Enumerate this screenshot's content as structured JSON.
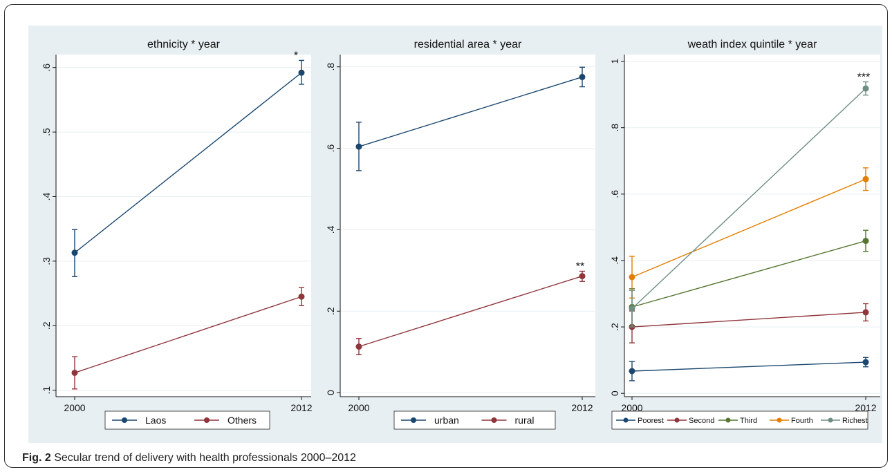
{
  "figure": {
    "caption_label": "Fig. 2",
    "caption_text": "Secular trend of delivery with health professionals 2000–2012"
  },
  "colors": {
    "navy": "#1a476f",
    "maroon": "#90353b",
    "green": "#55752f",
    "orange": "#e37e00",
    "teal": "#6e8e84",
    "plot_bg": "#ffffff",
    "outer_bg": "#e8eff2",
    "grid": "#e8eff2"
  },
  "chart_data": [
    {
      "type": "line",
      "title": "ethnicity * year",
      "xlabel": "",
      "ylabel": "",
      "x": [
        2000,
        2012
      ],
      "ylim": [
        0.09,
        0.62
      ],
      "yticks": [
        0.1,
        0.2,
        0.3,
        0.4,
        0.5,
        0.6
      ],
      "ytick_labels": [
        ".1",
        ".2",
        ".3",
        ".4",
        ".5",
        ".6"
      ],
      "grid": true,
      "legend_position": "bottom",
      "series": [
        {
          "name": "Laos",
          "color": "#1a476f",
          "values": [
            0.313,
            0.592
          ],
          "ci_low": [
            0.276,
            0.574
          ],
          "ci_high": [
            0.349,
            0.611
          ]
        },
        {
          "name": "Others",
          "color": "#90353b",
          "values": [
            0.127,
            0.245
          ],
          "ci_low": [
            0.102,
            0.231
          ],
          "ci_high": [
            0.152,
            0.259
          ]
        }
      ],
      "annotations": [
        {
          "text": "*",
          "x": 2012,
          "series": 0
        }
      ]
    },
    {
      "type": "line",
      "title": "residential area * year",
      "xlabel": "",
      "ylabel": "",
      "x": [
        2000,
        2012
      ],
      "ylim": [
        -0.01,
        0.83
      ],
      "yticks": [
        0,
        0.2,
        0.4,
        0.6,
        0.8
      ],
      "ytick_labels": [
        "0",
        ".2",
        ".4",
        ".6",
        ".8"
      ],
      "grid": true,
      "legend_position": "bottom",
      "series": [
        {
          "name": "urban",
          "color": "#1a476f",
          "values": [
            0.604,
            0.775
          ],
          "ci_low": [
            0.545,
            0.751
          ],
          "ci_high": [
            0.664,
            0.799
          ]
        },
        {
          "name": "rural",
          "color": "#90353b",
          "values": [
            0.113,
            0.286
          ],
          "ci_low": [
            0.093,
            0.273
          ],
          "ci_high": [
            0.133,
            0.298
          ]
        }
      ],
      "annotations": [
        {
          "text": "**",
          "x": 2012,
          "series": 1
        }
      ]
    },
    {
      "type": "line",
      "title": "weath index quintile * year",
      "xlabel": "",
      "ylabel": "",
      "x": [
        2000,
        2012
      ],
      "ylim": [
        -0.01,
        1.02
      ],
      "yticks": [
        0,
        0.2,
        0.4,
        0.6,
        0.8,
        1
      ],
      "ytick_labels": [
        "0",
        ".2",
        ".4",
        ".6",
        ".8",
        "1"
      ],
      "grid": true,
      "legend_position": "bottom",
      "series": [
        {
          "name": "Poorest",
          "color": "#1a476f",
          "values": [
            0.067,
            0.094
          ],
          "ci_low": [
            0.038,
            0.08
          ],
          "ci_high": [
            0.096,
            0.108
          ]
        },
        {
          "name": "Second",
          "color": "#90353b",
          "values": [
            0.2,
            0.244
          ],
          "ci_low": [
            0.152,
            0.218
          ],
          "ci_high": [
            0.248,
            0.27
          ]
        },
        {
          "name": "Third",
          "color": "#55752f",
          "values": [
            0.26,
            0.459
          ],
          "ci_low": [
            0.205,
            0.427
          ],
          "ci_high": [
            0.315,
            0.491
          ]
        },
        {
          "name": "Fourth",
          "color": "#e37e00",
          "values": [
            0.35,
            0.645
          ],
          "ci_low": [
            0.287,
            0.611
          ],
          "ci_high": [
            0.413,
            0.679
          ]
        },
        {
          "name": "Richest",
          "color": "#6e8e84",
          "values": [
            0.255,
            0.918
          ],
          "ci_low": [
            0.2,
            0.898
          ],
          "ci_high": [
            0.31,
            0.938
          ]
        }
      ],
      "annotations": [
        {
          "text": "***",
          "x": 2012,
          "series": 4
        }
      ]
    }
  ]
}
